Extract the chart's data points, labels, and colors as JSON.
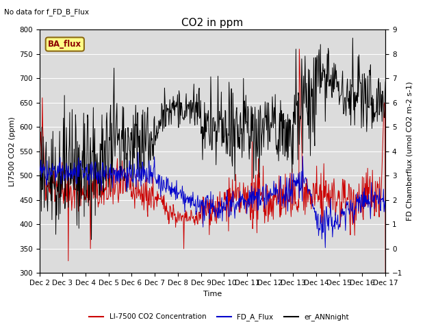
{
  "title": "CO2 in ppm",
  "top_left_text": "No data for f_FD_B_Flux",
  "legend_box_label": "BA_flux",
  "ylabel_left": "LI7500 CO2 (ppm)",
  "ylabel_right_display": "FD Chamberflux (umol CO2 m-2 s-1)",
  "xlabel": "Time",
  "ylim_left": [
    300,
    800
  ],
  "ylim_right": [
    -1.0,
    9.0
  ],
  "yticks_left": [
    300,
    350,
    400,
    450,
    500,
    550,
    600,
    650,
    700,
    750,
    800
  ],
  "yticks_right": [
    -1.0,
    0.0,
    1.0,
    2.0,
    3.0,
    4.0,
    5.0,
    6.0,
    7.0,
    8.0,
    9.0
  ],
  "xtick_labels": [
    "Dec 2",
    "Dec 3",
    "Dec 4",
    "Dec 5",
    "Dec 6",
    "Dec 7",
    "Dec 8",
    "Dec 9",
    "Dec 10",
    "Dec 11",
    "Dec 12",
    "Dec 13",
    "Dec 14",
    "Dec 15",
    "Dec 16",
    "Dec 17"
  ],
  "num_days": 15,
  "points_per_day": 48,
  "red_color": "#cc0000",
  "blue_color": "#0000cc",
  "black_color": "#000000",
  "background_color": "#dcdcdc",
  "legend_entries": [
    "LI-7500 CO2 Concentration",
    "FD_A_Flux",
    "er_ANNnight"
  ],
  "title_fontsize": 11,
  "axis_fontsize": 8,
  "tick_fontsize": 7.5
}
